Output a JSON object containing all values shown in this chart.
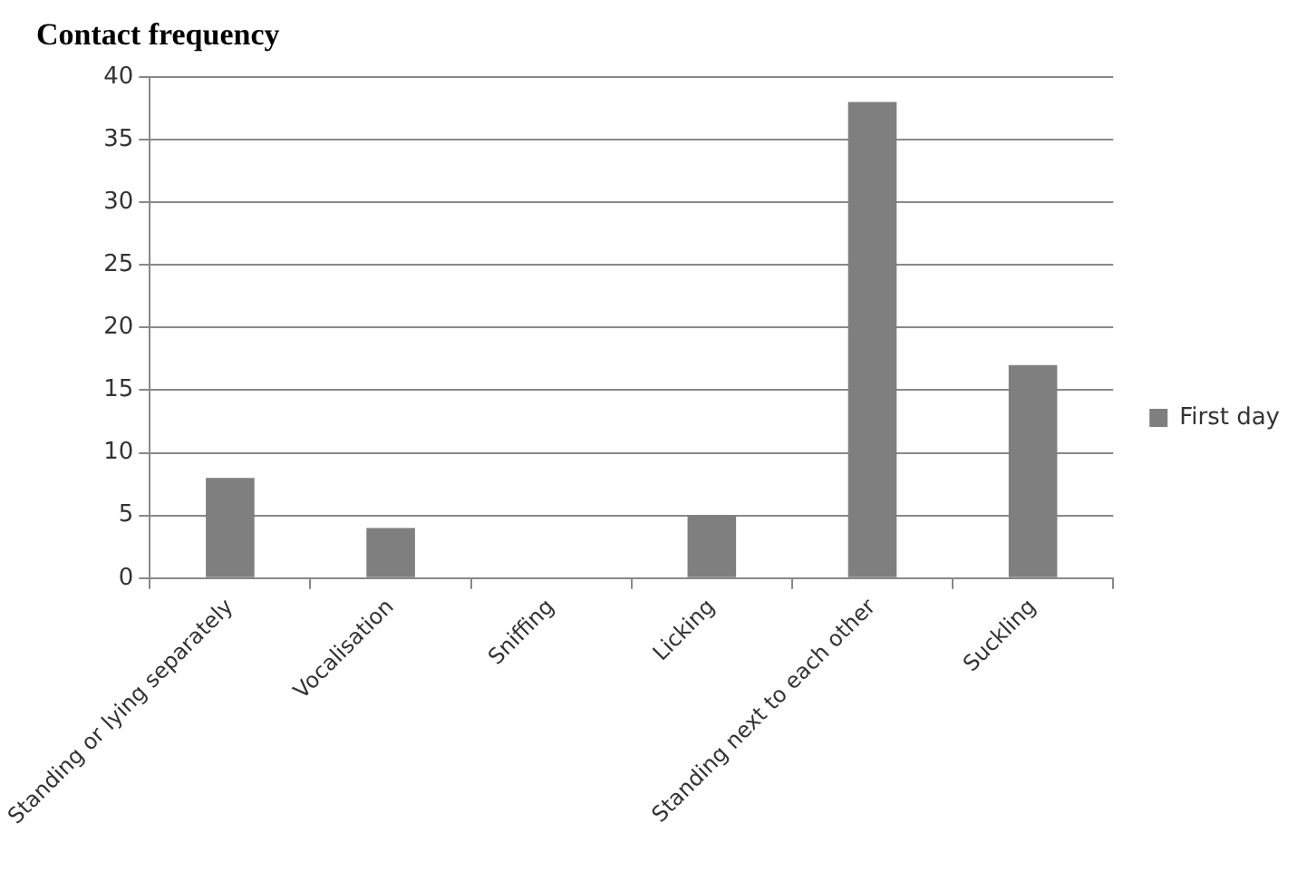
{
  "chart_data": {
    "type": "bar",
    "title": "Contact frequency",
    "categories": [
      "Standing or lying separately",
      "Vocalisation",
      "Sniffing",
      "Licking",
      "Standing next to each other",
      "Suckling"
    ],
    "series": [
      {
        "name": "First day",
        "color": "#7f7f7f",
        "values": [
          8,
          4,
          0,
          5,
          38,
          17
        ]
      }
    ],
    "ylim": [
      0,
      40
    ],
    "yticks": [
      0,
      5,
      10,
      15,
      20,
      25,
      30,
      35,
      40
    ],
    "grid": "y",
    "legend": "right"
  }
}
